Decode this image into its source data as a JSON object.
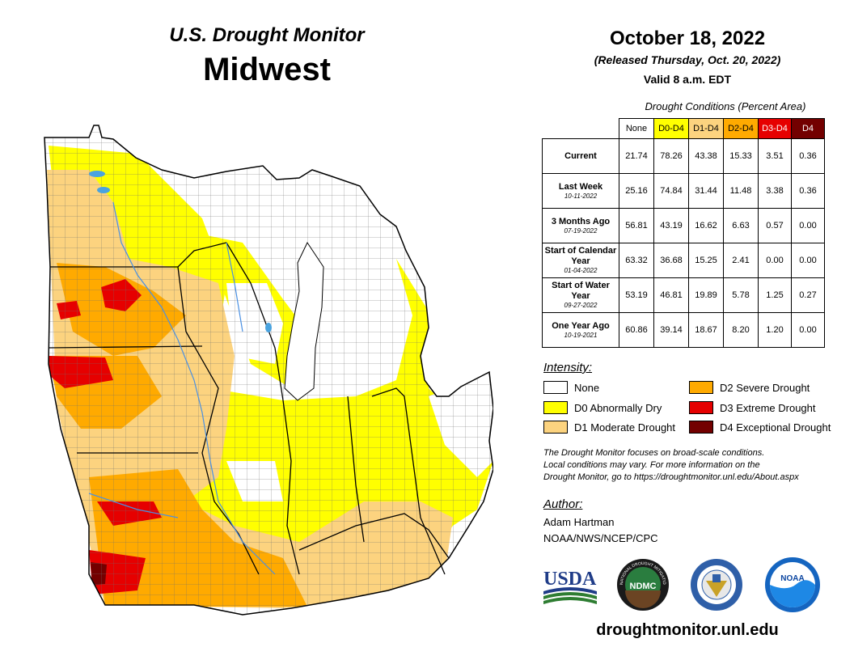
{
  "header": {
    "title": "U.S. Drought Monitor",
    "region": "Midwest",
    "date": "October 18, 2022",
    "released": "(Released Thursday, Oct. 20, 2022)",
    "valid": "Valid 8 a.m. EDT"
  },
  "table": {
    "caption": "Drought Conditions (Percent Area)",
    "columns": [
      {
        "label": "None",
        "color": "#ffffff",
        "text_color": "#000000"
      },
      {
        "label": "D0-D4",
        "color": "#ffff00",
        "text_color": "#000000"
      },
      {
        "label": "D1-D4",
        "color": "#fcd37f",
        "text_color": "#000000"
      },
      {
        "label": "D2-D4",
        "color": "#ffaa00",
        "text_color": "#000000"
      },
      {
        "label": "D3-D4",
        "color": "#e60000",
        "text_color": "#ffffff"
      },
      {
        "label": "D4",
        "color": "#730000",
        "text_color": "#ffffff"
      }
    ],
    "rows": [
      {
        "label": "Current",
        "sub": "",
        "values": [
          "21.74",
          "78.26",
          "43.38",
          "15.33",
          "3.51",
          "0.36"
        ]
      },
      {
        "label": "Last Week",
        "sub": "10-11-2022",
        "values": [
          "25.16",
          "74.84",
          "31.44",
          "11.48",
          "3.38",
          "0.36"
        ]
      },
      {
        "label": "3 Months Ago",
        "sub": "07-19-2022",
        "values": [
          "56.81",
          "43.19",
          "16.62",
          "6.63",
          "0.57",
          "0.00"
        ]
      },
      {
        "label": "Start of Calendar Year",
        "sub": "01-04-2022",
        "values": [
          "63.32",
          "36.68",
          "15.25",
          "2.41",
          "0.00",
          "0.00"
        ]
      },
      {
        "label": "Start of Water Year",
        "sub": "09-27-2022",
        "values": [
          "53.19",
          "46.81",
          "19.89",
          "5.78",
          "1.25",
          "0.27"
        ]
      },
      {
        "label": "One Year Ago",
        "sub": "10-19-2021",
        "values": [
          "60.86",
          "39.14",
          "18.67",
          "8.20",
          "1.20",
          "0.00"
        ]
      }
    ]
  },
  "legend": {
    "title": "Intensity:",
    "items": [
      {
        "label": "None",
        "color": "#ffffff"
      },
      {
        "label": "D0 Abnormally Dry",
        "color": "#ffff00"
      },
      {
        "label": "D1 Moderate Drought",
        "color": "#fcd37f"
      },
      {
        "label": "D2 Severe Drought",
        "color": "#ffaa00"
      },
      {
        "label": "D3 Extreme Drought",
        "color": "#e60000"
      },
      {
        "label": "D4 Exceptional Drought",
        "color": "#730000"
      }
    ]
  },
  "note": {
    "line1": "The Drought Monitor focuses on broad-scale conditions.",
    "line2": "Local conditions may vary. For more information on the",
    "line3": "Drought Monitor, go to https://droughtmonitor.unl.edu/About.aspx"
  },
  "author": {
    "title": "Author:",
    "name": "Adam Hartman",
    "org": "NOAA/NWS/NCEP/CPC"
  },
  "logos": {
    "usda": "USDA",
    "ndmc": "NDMC",
    "noaa": "NOAA",
    "ndmc_ring": "NATIONAL DROUGHT MITIGATION CENTER",
    "icons": [
      "usda-logo",
      "ndmc-logo",
      "doc-seal-logo",
      "noaa-logo"
    ]
  },
  "website": "droughtmonitor.unl.edu"
}
